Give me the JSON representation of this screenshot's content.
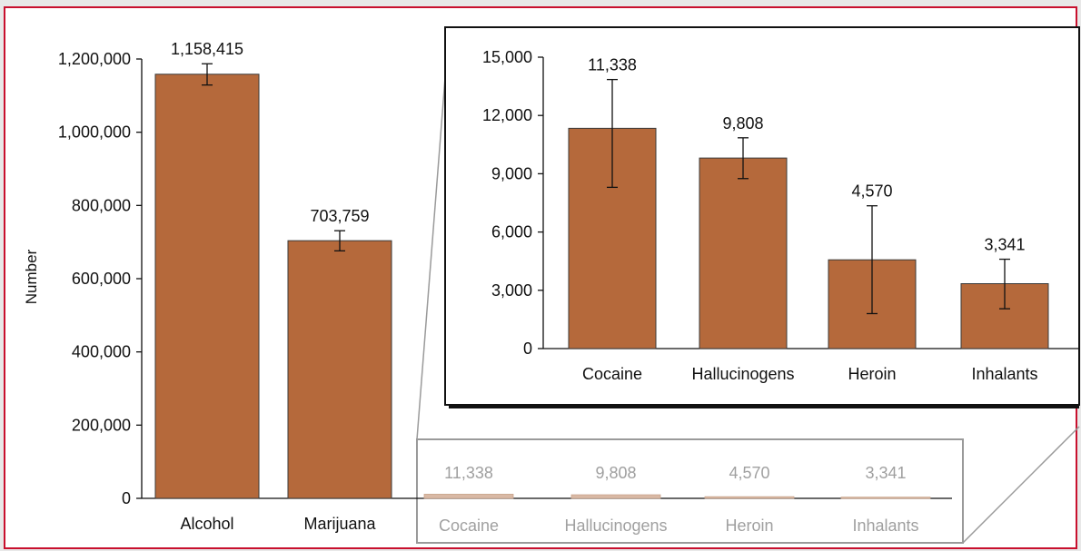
{
  "colors": {
    "page_background": "#e8e8e8",
    "panel_background": "#ffffff",
    "border": "#c8102e",
    "bar": "#b5693b",
    "bar_stroke": "#3a3a3a",
    "inset_frame": "#111111",
    "ghost_frame": "#9a9a9a",
    "ghost_text": "#a0a0a0",
    "ghost_bar": "#d9b9a5"
  },
  "chart_data": [
    {
      "id": "main",
      "type": "bar",
      "categories": [
        "Alcohol",
        "Marijuana"
      ],
      "values": [
        1158415,
        703759
      ],
      "value_labels": [
        "1,158,415",
        "703,759"
      ],
      "error_low": [
        1129000,
        676000
      ],
      "error_high": [
        1187000,
        731000
      ],
      "ylabel": "Number",
      "ylim": [
        0,
        1200000
      ],
      "yticks": [
        0,
        200000,
        400000,
        600000,
        800000,
        1000000,
        1200000
      ],
      "ytick_labels": [
        "0",
        "200,000",
        "400,000",
        "600,000",
        "800,000",
        "1,000,000",
        "1,200,000"
      ],
      "bar_color": "#b5693b",
      "grid": false,
      "extra_categories_on_axis": {
        "categories": [
          "Cocaine",
          "Hallucinogens",
          "Heroin",
          "Inhalants"
        ],
        "values": [
          11338,
          9808,
          4570,
          3341
        ],
        "value_labels": [
          "11,338",
          "9,808",
          "4,570",
          "3,341"
        ]
      }
    },
    {
      "id": "inset",
      "type": "bar",
      "categories": [
        "Cocaine",
        "Hallucinogens",
        "Heroin",
        "Inhalants"
      ],
      "values": [
        11338,
        9808,
        4570,
        3341
      ],
      "value_labels": [
        "11,338",
        "9,808",
        "4,570",
        "3,341"
      ],
      "error_low": [
        8300,
        8750,
        1800,
        2050
      ],
      "error_high": [
        13850,
        10850,
        7350,
        4600
      ],
      "ylim": [
        0,
        15000
      ],
      "yticks": [
        0,
        3000,
        6000,
        9000,
        12000,
        15000
      ],
      "ytick_labels": [
        "0",
        "3,000",
        "6,000",
        "9,000",
        "12,000",
        "15,000"
      ],
      "bar_color": "#b5693b",
      "grid": false,
      "note": "magnified view of the four small bars at the right of the main chart"
    }
  ]
}
